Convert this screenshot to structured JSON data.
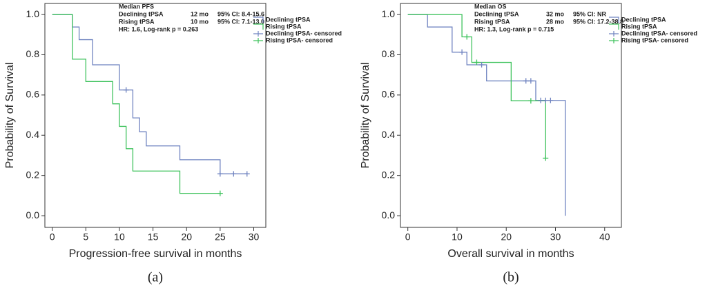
{
  "chart_data": [
    {
      "type": "step",
      "ylabel": "Probability of Survival",
      "xlabel": "Progression-free survival in months",
      "caption": "(a)",
      "annotation_title": "Median PFS",
      "annotation_rows": [
        [
          "Declining tPSA",
          "12 mo",
          "95% CI: 8.4-15.6"
        ],
        [
          "Rising tPSA",
          "10 mo",
          "95% CI: 7.1-13.0"
        ]
      ],
      "annotation_footer": "HR: 1.6, Log-rank p = 0.263",
      "xlim": [
        -1.1,
        31.8
      ],
      "ylim": [
        -0.058,
        1.055
      ],
      "xticks": [
        0,
        5,
        10,
        15,
        20,
        25,
        30
      ],
      "yticks": [
        {
          "value": 0,
          "label": "0.0"
        },
        0.2,
        0.4,
        0.6,
        0.8,
        {
          "value": 1,
          "label": "1.0"
        }
      ],
      "series": [
        {
          "name": "Declining tPSA",
          "color": "#6f83c0",
          "kind": "line",
          "x": [
            0,
            3,
            4,
            6,
            10,
            12,
            13,
            14,
            19,
            25,
            29
          ],
          "values": [
            1.0,
            0.938,
            0.875,
            0.75,
            0.625,
            0.486,
            0.417,
            0.347,
            0.278,
            0.208,
            0.208
          ]
        },
        {
          "name": "Rising tPSA",
          "color": "#3ec25c",
          "kind": "line",
          "x": [
            0,
            3,
            5,
            9,
            10,
            11,
            12,
            19,
            25
          ],
          "values": [
            1.0,
            0.778,
            0.667,
            0.556,
            0.444,
            0.333,
            0.222,
            0.111,
            0.111
          ]
        },
        {
          "name": "Declining tPSA- censored",
          "color": "#6f83c0",
          "kind": "censor",
          "x": [
            11,
            25,
            27,
            29
          ],
          "values": [
            0.625,
            0.208,
            0.208,
            0.208
          ]
        },
        {
          "name": "Rising tPSA- censored",
          "color": "#3ec25c",
          "kind": "censor",
          "x": [
            25
          ],
          "values": [
            0.111
          ]
        }
      ]
    },
    {
      "type": "step",
      "ylabel": "Probability of Survival",
      "xlabel": "Overall survival in months",
      "caption": "(b)",
      "annotation_title": "Median OS",
      "annotation_rows": [
        [
          "Declining tPSA",
          "32 mo",
          "95% CI: NR"
        ],
        [
          "Rising tPSA",
          "28 mo",
          "95% CI: 17.2-38.8"
        ]
      ],
      "annotation_footer": "HR: 1.3, Log-rank p = 0.715",
      "xlim": [
        -1.5,
        43.4
      ],
      "ylim": [
        -0.058,
        1.055
      ],
      "xticks": [
        0,
        10,
        20,
        30,
        40
      ],
      "yticks": [
        {
          "value": 0,
          "label": "0.0"
        },
        0.2,
        0.4,
        0.6,
        0.8,
        {
          "value": 1,
          "label": "1.0"
        }
      ],
      "series": [
        {
          "name": "Declining tPSA",
          "color": "#6f83c0",
          "kind": "line",
          "x": [
            0,
            4,
            9,
            12,
            16,
            26,
            32
          ],
          "values": [
            1.0,
            0.938,
            0.813,
            0.75,
            0.67,
            0.573,
            0.0
          ]
        },
        {
          "name": "Rising tPSA",
          "color": "#3ec25c",
          "kind": "line",
          "x": [
            0,
            11,
            13,
            21,
            28
          ],
          "values": [
            1.0,
            0.889,
            0.762,
            0.571,
            0.286
          ]
        },
        {
          "name": "Declining tPSA- censored",
          "color": "#6f83c0",
          "kind": "censor",
          "x": [
            11,
            15,
            24,
            25,
            27,
            28,
            29
          ],
          "values": [
            0.813,
            0.75,
            0.67,
            0.67,
            0.573,
            0.573,
            0.573
          ]
        },
        {
          "name": "Rising tPSA- censored",
          "color": "#3ec25c",
          "kind": "censor",
          "x": [
            12,
            14,
            25,
            28
          ],
          "values": [
            0.889,
            0.762,
            0.571,
            0.286
          ]
        }
      ]
    }
  ]
}
